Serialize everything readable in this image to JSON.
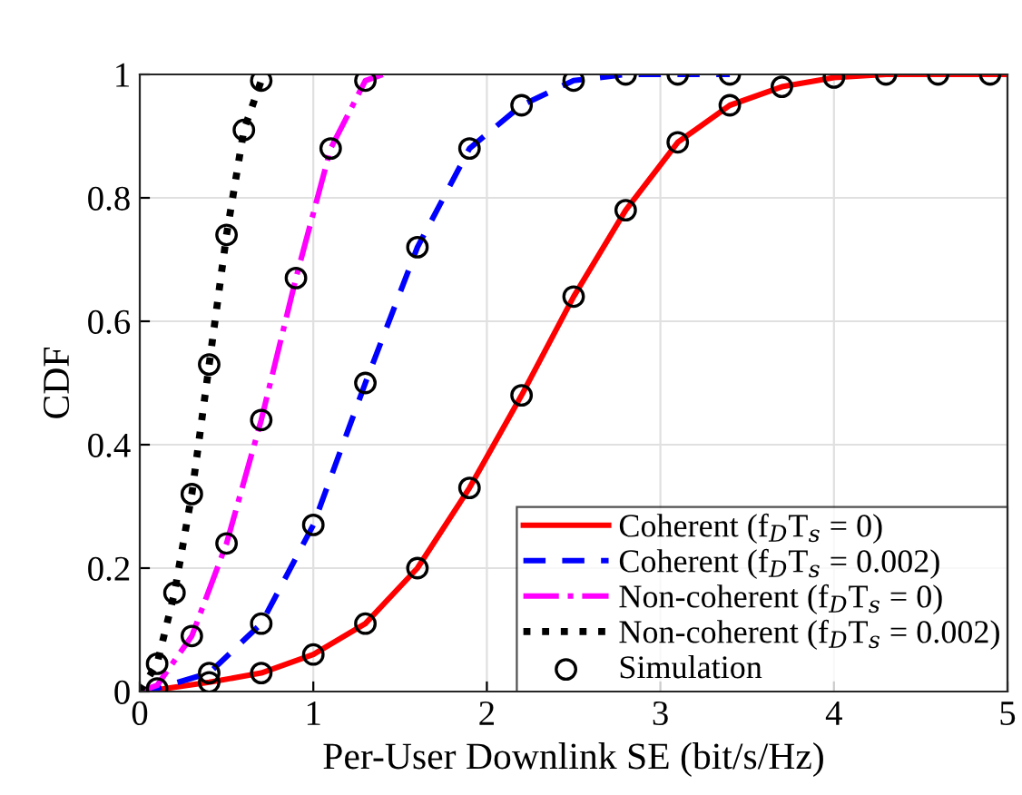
{
  "chart_data": {
    "type": "line",
    "xlabel": "Per-User Downlink SE (bit/s/Hz)",
    "ylabel": "CDF",
    "xlim": [
      0,
      5
    ],
    "ylim": [
      0,
      1
    ],
    "xticks": [
      0,
      1,
      2,
      3,
      4,
      5
    ],
    "yticks": [
      0,
      0.2,
      0.4,
      0.6,
      0.8,
      1
    ],
    "grid": true,
    "legend": "bottom right",
    "series": [
      {
        "name": "Coherent (f$_{D}$T$_{s}$ = 0)",
        "color": "#ff0000",
        "line_style": "solid",
        "marker": "none",
        "x": [
          0,
          0.1,
          0.4,
          0.7,
          1.0,
          1.3,
          1.6,
          1.9,
          2.2,
          2.5,
          2.8,
          3.1,
          3.4,
          3.7,
          4.0,
          4.3,
          4.6,
          4.9,
          5
        ],
        "values": [
          0,
          0.003,
          0.015,
          0.03,
          0.06,
          0.11,
          0.2,
          0.33,
          0.48,
          0.64,
          0.78,
          0.89,
          0.95,
          0.98,
          0.995,
          1,
          1,
          1,
          1
        ]
      },
      {
        "name": "Coherent (f$_{D}$T$_{s}$ = 0.002)",
        "color": "#0000ff",
        "line_style": "dashed",
        "marker": "none",
        "x": [
          0,
          0.1,
          0.4,
          0.7,
          1.0,
          1.3,
          1.6,
          1.9,
          2.2,
          2.5,
          2.8,
          3.1,
          3.4
        ],
        "values": [
          0,
          0.005,
          0.03,
          0.11,
          0.27,
          0.5,
          0.72,
          0.88,
          0.95,
          0.99,
          1,
          1,
          1
        ]
      },
      {
        "name": "Non-coherent (f$_{D}$T$_{s}$ = 0)",
        "color": "#ff00ff",
        "line_style": "dashdot",
        "marker": "none",
        "x": [
          0,
          0.1,
          0.3,
          0.5,
          0.7,
          0.9,
          1.1,
          1.3,
          1.4
        ],
        "values": [
          0,
          0.01,
          0.09,
          0.24,
          0.44,
          0.67,
          0.88,
          0.99,
          1
        ]
      },
      {
        "name": "Non-coherent (f$_{D}$T$_{s}$ = 0.002)",
        "color": "#000000",
        "line_style": "dotted",
        "marker": "none",
        "x": [
          0,
          0.1,
          0.2,
          0.3,
          0.4,
          0.5,
          0.6,
          0.7
        ],
        "values": [
          0,
          0.045,
          0.16,
          0.32,
          0.53,
          0.74,
          0.91,
          0.99
        ]
      },
      {
        "name": "Simulation",
        "type": "scatter",
        "color": "#000000",
        "marker": "circle",
        "x": [
          0.1,
          0.4,
          0.7,
          1.0,
          1.3,
          1.6,
          1.9,
          2.2,
          2.5,
          2.8,
          3.1,
          3.4,
          3.7,
          4.0,
          4.3,
          4.6,
          4.9,
          0.4,
          0.7,
          1.0,
          1.3,
          1.6,
          1.9,
          2.2,
          2.5,
          2.8,
          3.1,
          3.4,
          0.3,
          0.5,
          0.7,
          0.9,
          1.1,
          1.3,
          0.1,
          0.2,
          0.3,
          0.4,
          0.5,
          0.6,
          0.7
        ],
        "values": [
          0.005,
          0.015,
          0.03,
          0.06,
          0.11,
          0.2,
          0.33,
          0.48,
          0.64,
          0.78,
          0.89,
          0.95,
          0.98,
          0.995,
          1,
          1,
          1,
          0.03,
          0.11,
          0.27,
          0.5,
          0.72,
          0.88,
          0.95,
          0.99,
          1,
          1,
          1,
          0.09,
          0.24,
          0.44,
          0.67,
          0.88,
          0.99,
          0.045,
          0.16,
          0.32,
          0.53,
          0.74,
          0.91,
          0.99
        ]
      }
    ]
  }
}
